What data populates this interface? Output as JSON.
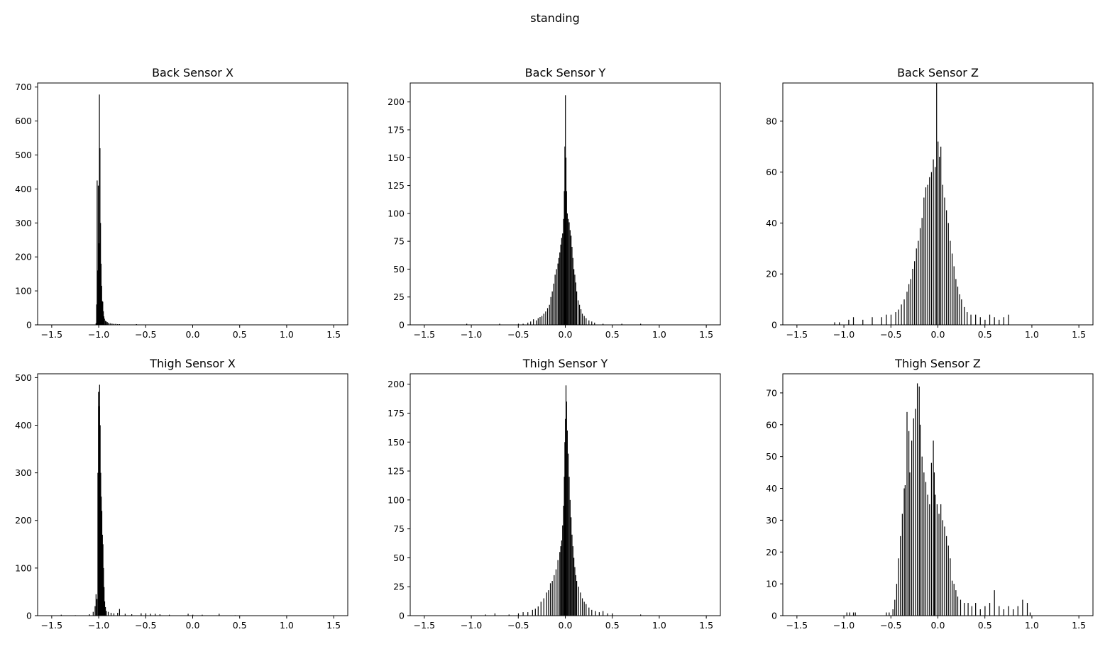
{
  "figure": {
    "suptitle": "standing",
    "bar_color": "#000000",
    "axes_color": "#000000",
    "background": "#ffffff"
  },
  "chart_data": [
    {
      "type": "bar",
      "title": "Back Sensor X",
      "xlim": [
        -1.65,
        1.65
      ],
      "ylim": [
        0,
        712
      ],
      "xticks": [
        -1.5,
        -1.0,
        -0.5,
        0.0,
        0.5,
        1.0,
        1.5
      ],
      "xtick_labels": [
        "−1.5",
        "−1.0",
        "−0.5",
        "0.0",
        "0.5",
        "1.0",
        "1.5"
      ],
      "yticks": [
        0,
        100,
        200,
        300,
        400,
        500,
        600,
        700
      ],
      "ytick_labels": [
        "0",
        "100",
        "200",
        "300",
        "400",
        "500",
        "600",
        "700"
      ],
      "grid": false,
      "bin_width": 0.006,
      "bins": [
        [
          -1.03,
          5
        ],
        [
          -1.024,
          60
        ],
        [
          -1.018,
          425
        ],
        [
          -1.012,
          160
        ],
        [
          -1.006,
          410
        ],
        [
          -1.0,
          240
        ],
        [
          -0.994,
          678
        ],
        [
          -0.988,
          520
        ],
        [
          -0.982,
          300
        ],
        [
          -0.976,
          180
        ],
        [
          -0.97,
          115
        ],
        [
          -0.964,
          70
        ],
        [
          -0.958,
          68
        ],
        [
          -0.952,
          40
        ],
        [
          -0.946,
          25
        ],
        [
          -0.94,
          18
        ],
        [
          -0.93,
          12
        ],
        [
          -0.92,
          10
        ],
        [
          -0.91,
          8
        ],
        [
          -0.9,
          6
        ],
        [
          -0.88,
          5
        ],
        [
          -0.86,
          4
        ],
        [
          -0.84,
          3
        ],
        [
          -0.82,
          3
        ],
        [
          -0.8,
          2
        ],
        [
          -0.78,
          2
        ],
        [
          -0.72,
          1
        ],
        [
          -0.6,
          2
        ],
        [
          -0.5,
          1
        ],
        [
          -0.32,
          1
        ]
      ]
    },
    {
      "type": "bar",
      "title": "Back Sensor Y",
      "xlim": [
        -1.65,
        1.65
      ],
      "ylim": [
        0,
        217
      ],
      "xticks": [
        -1.5,
        -1.0,
        -0.5,
        0.0,
        0.5,
        1.0,
        1.5
      ],
      "xtick_labels": [
        "−1.5",
        "−1.0",
        "−0.5",
        "0.0",
        "0.5",
        "1.0",
        "1.5"
      ],
      "yticks": [
        0,
        25,
        50,
        75,
        100,
        125,
        150,
        175,
        200
      ],
      "ytick_labels": [
        "0",
        "25",
        "50",
        "75",
        "100",
        "125",
        "150",
        "175",
        "200"
      ],
      "grid": false,
      "bin_width": 0.006,
      "bins": [
        [
          -1.05,
          1
        ],
        [
          -0.7,
          1
        ],
        [
          -0.5,
          1
        ],
        [
          -0.45,
          1
        ],
        [
          -0.4,
          2
        ],
        [
          -0.37,
          3
        ],
        [
          -0.34,
          5
        ],
        [
          -0.31,
          4
        ],
        [
          -0.29,
          6
        ],
        [
          -0.27,
          7
        ],
        [
          -0.25,
          8
        ],
        [
          -0.23,
          10
        ],
        [
          -0.21,
          12
        ],
        [
          -0.19,
          15
        ],
        [
          -0.17,
          18
        ],
        [
          -0.155,
          25
        ],
        [
          -0.14,
          30
        ],
        [
          -0.125,
          37
        ],
        [
          -0.11,
          45
        ],
        [
          -0.095,
          50
        ],
        [
          -0.08,
          55
        ],
        [
          -0.07,
          60
        ],
        [
          -0.06,
          65
        ],
        [
          -0.05,
          72
        ],
        [
          -0.04,
          78
        ],
        [
          -0.03,
          82
        ],
        [
          -0.02,
          95
        ],
        [
          -0.012,
          120
        ],
        [
          -0.006,
          160
        ],
        [
          0.0,
          206
        ],
        [
          0.006,
          150
        ],
        [
          0.012,
          120
        ],
        [
          0.02,
          100
        ],
        [
          0.03,
          95
        ],
        [
          0.04,
          92
        ],
        [
          0.05,
          85
        ],
        [
          0.06,
          80
        ],
        [
          0.07,
          70
        ],
        [
          0.08,
          60
        ],
        [
          0.09,
          50
        ],
        [
          0.1,
          45
        ],
        [
          0.11,
          38
        ],
        [
          0.12,
          30
        ],
        [
          0.135,
          22
        ],
        [
          0.15,
          18
        ],
        [
          0.165,
          14
        ],
        [
          0.18,
          10
        ],
        [
          0.2,
          8
        ],
        [
          0.22,
          6
        ],
        [
          0.25,
          4
        ],
        [
          0.28,
          3
        ],
        [
          0.31,
          2
        ],
        [
          0.4,
          1
        ],
        [
          0.6,
          1
        ],
        [
          0.8,
          1
        ]
      ]
    },
    {
      "type": "bar",
      "title": "Back Sensor Z",
      "xlim": [
        -1.65,
        1.65
      ],
      "ylim": [
        0,
        95
      ],
      "xticks": [
        -1.5,
        -1.0,
        -0.5,
        0.0,
        0.5,
        1.0,
        1.5
      ],
      "xtick_labels": [
        "−1.5",
        "−1.0",
        "−0.5",
        "0.0",
        "0.5",
        "1.0",
        "1.5"
      ],
      "yticks": [
        0,
        20,
        40,
        60,
        80
      ],
      "ytick_labels": [
        "0",
        "20",
        "40",
        "60",
        "80"
      ],
      "grid": false,
      "bin_width": 0.006,
      "bins": [
        [
          -1.1,
          1
        ],
        [
          -1.05,
          1
        ],
        [
          -0.95,
          2
        ],
        [
          -0.9,
          3
        ],
        [
          -0.8,
          2
        ],
        [
          -0.7,
          3
        ],
        [
          -0.6,
          3
        ],
        [
          -0.55,
          4
        ],
        [
          -0.5,
          4
        ],
        [
          -0.45,
          5
        ],
        [
          -0.42,
          6
        ],
        [
          -0.39,
          8
        ],
        [
          -0.36,
          10
        ],
        [
          -0.33,
          13
        ],
        [
          -0.31,
          16
        ],
        [
          -0.29,
          18
        ],
        [
          -0.27,
          22
        ],
        [
          -0.25,
          25
        ],
        [
          -0.23,
          30
        ],
        [
          -0.21,
          33
        ],
        [
          -0.19,
          38
        ],
        [
          -0.17,
          42
        ],
        [
          -0.15,
          50
        ],
        [
          -0.13,
          54
        ],
        [
          -0.11,
          55
        ],
        [
          -0.09,
          58
        ],
        [
          -0.07,
          60
        ],
        [
          -0.05,
          65
        ],
        [
          -0.03,
          62
        ],
        [
          -0.015,
          95
        ],
        [
          0.0,
          72
        ],
        [
          0.015,
          66
        ],
        [
          0.03,
          70
        ],
        [
          0.05,
          55
        ],
        [
          0.07,
          50
        ],
        [
          0.09,
          45
        ],
        [
          0.11,
          40
        ],
        [
          0.13,
          33
        ],
        [
          0.15,
          28
        ],
        [
          0.17,
          23
        ],
        [
          0.19,
          18
        ],
        [
          0.21,
          15
        ],
        [
          0.23,
          12
        ],
        [
          0.25,
          10
        ],
        [
          0.28,
          7
        ],
        [
          0.31,
          5
        ],
        [
          0.35,
          4
        ],
        [
          0.4,
          4
        ],
        [
          0.45,
          3
        ],
        [
          0.5,
          2
        ],
        [
          0.55,
          4
        ],
        [
          0.6,
          3
        ],
        [
          0.65,
          2
        ],
        [
          0.7,
          3
        ],
        [
          0.75,
          4
        ]
      ]
    },
    {
      "type": "bar",
      "title": "Thigh Sensor X",
      "xlim": [
        -1.65,
        1.65
      ],
      "ylim": [
        0,
        508
      ],
      "xticks": [
        -1.5,
        -1.0,
        -0.5,
        0.0,
        0.5,
        1.0,
        1.5
      ],
      "xtick_labels": [
        "−1.5",
        "−1.0",
        "−0.5",
        "0.0",
        "0.5",
        "1.0",
        "1.5"
      ],
      "yticks": [
        0,
        100,
        200,
        300,
        400,
        500
      ],
      "ytick_labels": [
        "0",
        "100",
        "200",
        "300",
        "400",
        "500"
      ],
      "grid": false,
      "bin_width": 0.006,
      "bins": [
        [
          -1.4,
          2
        ],
        [
          -1.25,
          1
        ],
        [
          -1.1,
          3
        ],
        [
          -1.06,
          8
        ],
        [
          -1.04,
          20
        ],
        [
          -1.03,
          45
        ],
        [
          -1.02,
          35
        ],
        [
          -1.01,
          300
        ],
        [
          -1.004,
          470
        ],
        [
          -0.998,
          440
        ],
        [
          -0.992,
          485
        ],
        [
          -0.986,
          400
        ],
        [
          -0.98,
          300
        ],
        [
          -0.974,
          250
        ],
        [
          -0.968,
          220
        ],
        [
          -0.962,
          170
        ],
        [
          -0.956,
          150
        ],
        [
          -0.95,
          100
        ],
        [
          -0.944,
          60
        ],
        [
          -0.938,
          30
        ],
        [
          -0.93,
          18
        ],
        [
          -0.92,
          10
        ],
        [
          -0.9,
          8
        ],
        [
          -0.87,
          6
        ],
        [
          -0.84,
          5
        ],
        [
          -0.8,
          6
        ],
        [
          -0.78,
          14
        ],
        [
          -0.72,
          4
        ],
        [
          -0.65,
          3
        ],
        [
          -0.55,
          5
        ],
        [
          -0.5,
          5
        ],
        [
          -0.45,
          4
        ],
        [
          -0.4,
          4
        ],
        [
          -0.35,
          3
        ],
        [
          -0.25,
          2
        ],
        [
          -0.05,
          4
        ],
        [
          0.0,
          2
        ],
        [
          0.1,
          2
        ],
        [
          0.28,
          4
        ],
        [
          0.45,
          1
        ]
      ]
    },
    {
      "type": "bar",
      "title": "Thigh Sensor Y",
      "xlim": [
        -1.65,
        1.65
      ],
      "ylim": [
        0,
        209
      ],
      "xticks": [
        -1.5,
        -1.0,
        -0.5,
        0.0,
        0.5,
        1.0,
        1.5
      ],
      "xtick_labels": [
        "−1.5",
        "−1.0",
        "−0.5",
        "0.0",
        "0.5",
        "1.0",
        "1.5"
      ],
      "yticks": [
        0,
        25,
        50,
        75,
        100,
        125,
        150,
        175,
        200
      ],
      "ytick_labels": [
        "0",
        "25",
        "50",
        "75",
        "100",
        "125",
        "150",
        "175",
        "200"
      ],
      "grid": false,
      "bin_width": 0.006,
      "bins": [
        [
          -0.85,
          1
        ],
        [
          -0.75,
          2
        ],
        [
          -0.6,
          1
        ],
        [
          -0.5,
          2
        ],
        [
          -0.45,
          3
        ],
        [
          -0.4,
          3
        ],
        [
          -0.35,
          5
        ],
        [
          -0.32,
          6
        ],
        [
          -0.29,
          8
        ],
        [
          -0.26,
          12
        ],
        [
          -0.23,
          15
        ],
        [
          -0.2,
          20
        ],
        [
          -0.18,
          22
        ],
        [
          -0.16,
          28
        ],
        [
          -0.14,
          30
        ],
        [
          -0.12,
          35
        ],
        [
          -0.1,
          40
        ],
        [
          -0.08,
          48
        ],
        [
          -0.06,
          55
        ],
        [
          -0.05,
          60
        ],
        [
          -0.04,
          65
        ],
        [
          -0.03,
          78
        ],
        [
          -0.02,
          95
        ],
        [
          -0.012,
          120
        ],
        [
          -0.006,
          150
        ],
        [
          0.0,
          170
        ],
        [
          0.006,
          199
        ],
        [
          0.012,
          185
        ],
        [
          0.02,
          160
        ],
        [
          0.03,
          140
        ],
        [
          0.04,
          120
        ],
        [
          0.05,
          100
        ],
        [
          0.06,
          85
        ],
        [
          0.07,
          70
        ],
        [
          0.08,
          60
        ],
        [
          0.09,
          50
        ],
        [
          0.1,
          42
        ],
        [
          0.11,
          35
        ],
        [
          0.12,
          30
        ],
        [
          0.14,
          25
        ],
        [
          0.16,
          20
        ],
        [
          0.18,
          15
        ],
        [
          0.2,
          12
        ],
        [
          0.22,
          10
        ],
        [
          0.25,
          7
        ],
        [
          0.28,
          5
        ],
        [
          0.32,
          4
        ],
        [
          0.36,
          3
        ],
        [
          0.4,
          4
        ],
        [
          0.45,
          2
        ],
        [
          0.5,
          2
        ],
        [
          0.8,
          1
        ]
      ]
    },
    {
      "type": "bar",
      "title": "Thigh Sensor Z",
      "xlim": [
        -1.65,
        1.65
      ],
      "ylim": [
        0,
        76
      ],
      "xticks": [
        -1.5,
        -1.0,
        -0.5,
        0.0,
        0.5,
        1.0,
        1.5
      ],
      "xtick_labels": [
        "−1.5",
        "−1.0",
        "−0.5",
        "0.0",
        "0.5",
        "1.0",
        "1.5"
      ],
      "yticks": [
        0,
        10,
        20,
        30,
        40,
        50,
        60,
        70
      ],
      "ytick_labels": [
        "0",
        "10",
        "20",
        "30",
        "40",
        "50",
        "60",
        "70"
      ],
      "grid": false,
      "bin_width": 0.006,
      "bins": [
        [
          -0.97,
          1
        ],
        [
          -0.94,
          1
        ],
        [
          -0.9,
          1
        ],
        [
          -0.88,
          1
        ],
        [
          -0.55,
          1
        ],
        [
          -0.52,
          1
        ],
        [
          -0.48,
          2
        ],
        [
          -0.46,
          5
        ],
        [
          -0.44,
          10
        ],
        [
          -0.42,
          18
        ],
        [
          -0.4,
          25
        ],
        [
          -0.38,
          32
        ],
        [
          -0.36,
          40
        ],
        [
          -0.35,
          41
        ],
        [
          -0.33,
          64
        ],
        [
          -0.31,
          58
        ],
        [
          -0.3,
          45
        ],
        [
          -0.28,
          55
        ],
        [
          -0.26,
          62
        ],
        [
          -0.24,
          65
        ],
        [
          -0.22,
          73
        ],
        [
          -0.2,
          72
        ],
        [
          -0.19,
          60
        ],
        [
          -0.17,
          50
        ],
        [
          -0.15,
          45
        ],
        [
          -0.13,
          42
        ],
        [
          -0.11,
          38
        ],
        [
          -0.09,
          35
        ],
        [
          -0.07,
          48
        ],
        [
          -0.05,
          55
        ],
        [
          -0.04,
          45
        ],
        [
          -0.03,
          38
        ],
        [
          -0.01,
          35
        ],
        [
          0.01,
          32
        ],
        [
          0.03,
          35
        ],
        [
          0.05,
          30
        ],
        [
          0.07,
          28
        ],
        [
          0.09,
          25
        ],
        [
          0.11,
          22
        ],
        [
          0.13,
          18
        ],
        [
          0.15,
          11
        ],
        [
          0.17,
          10
        ],
        [
          0.19,
          8
        ],
        [
          0.21,
          6
        ],
        [
          0.24,
          5
        ],
        [
          0.28,
          4
        ],
        [
          0.32,
          4
        ],
        [
          0.36,
          3
        ],
        [
          0.4,
          4
        ],
        [
          0.45,
          2
        ],
        [
          0.5,
          3
        ],
        [
          0.55,
          4
        ],
        [
          0.6,
          8
        ],
        [
          0.65,
          3
        ],
        [
          0.7,
          2
        ],
        [
          0.75,
          3
        ],
        [
          0.8,
          2
        ],
        [
          0.85,
          3
        ],
        [
          0.9,
          5
        ],
        [
          0.95,
          4
        ],
        [
          0.98,
          1
        ]
      ]
    }
  ]
}
